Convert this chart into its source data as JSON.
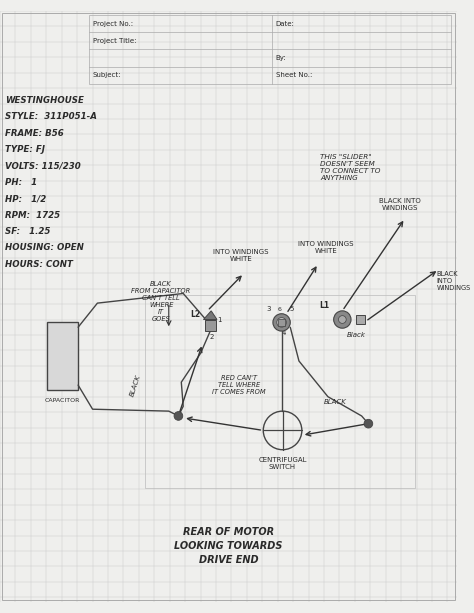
{
  "bg_color": "#efefed",
  "grid_color": "#cccccc",
  "line_color": "#444444",
  "text_color": "#2a2a2a",
  "motor_specs": [
    "WESTINGHOUSE",
    "STYLE:  311P051-A",
    "FRAME: B56",
    "TYPE: FJ",
    "VOLTS: 115/230",
    "PH:   1",
    "HP:   1/2",
    "RPM:  1725",
    "SF:   1.25",
    "HOUSING: OPEN",
    "HOURS: CONT"
  ],
  "note_text": "THIS \"SLIDER\"\nDOESN'T SEEM\nTO CONNECT TO\nANYTHING",
  "bottom_text": "REAR OF MOTOR\nLOOKING TOWARDS\nDRIVE END",
  "centrifugal_label": "CENTRIFUGAL\nSWITCH",
  "cap_label": "CAPACITOR",
  "lbl_into_windings_white_L": "INTO WINDINGS\nWHITE",
  "lbl_into_windings_white_R": "INTO WINDINGS\nWHITE",
  "lbl_black_into_windings_R": "BLACK INTO\nWINDINGS",
  "lbl_black_into_windings_RR": "BLACK\nINTO\nWINDINGS",
  "lbl_black_from_cap": "BLACK\nFROM CAPACITOR\nCAN'T TELL\nWHERE\nIT\nGOES",
  "lbl_red": "RED CAN'T\nTELL WHERE\nIT COMES FROM",
  "lbl_black_lower": "BLACK",
  "lbl_black_left": "BLACK"
}
